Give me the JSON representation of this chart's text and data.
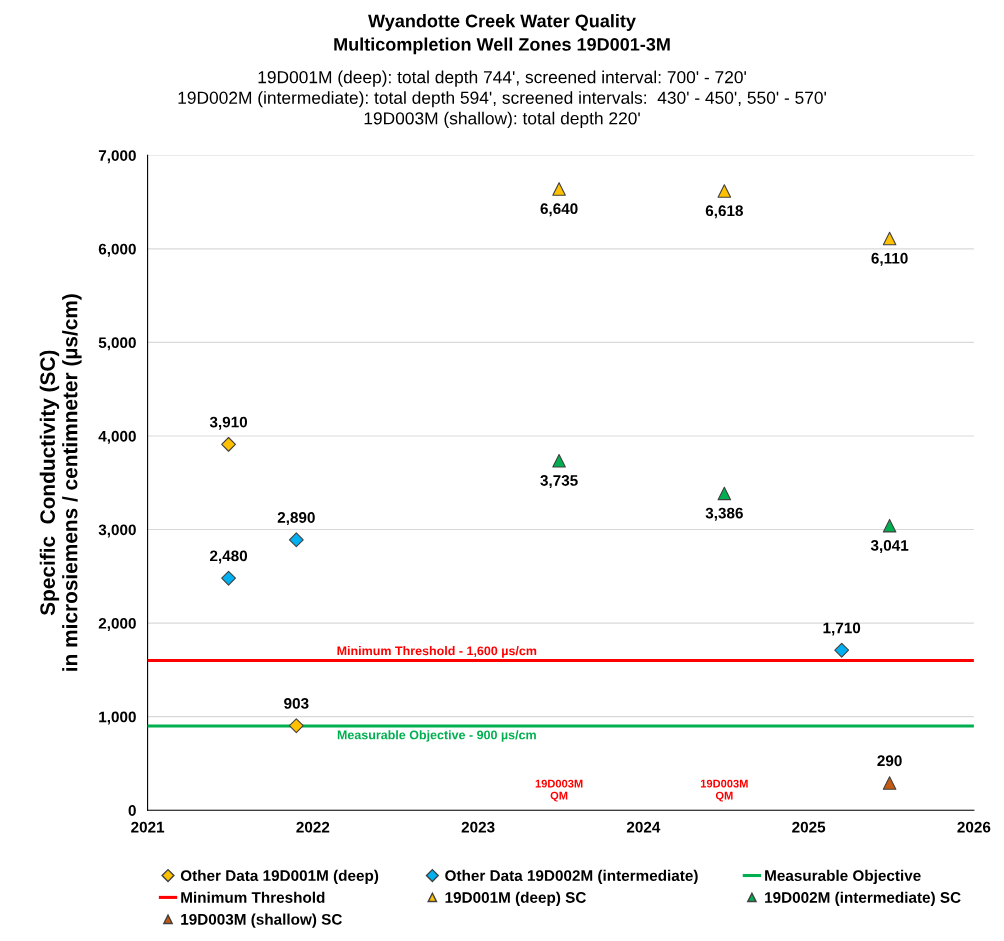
{
  "chart_data": {
    "type": "scatter",
    "title": "Wyandotte Creek Water Quality\nMulticompletion Well Zones 19D001-3M",
    "subtitle": "19D001M (deep): total depth 744', screened interval: 700' - 720'\n19D002M (intermediate): total depth 594', screened intervals:  430' - 450', 550' - 570'\n19D003M (shallow): total depth 220'",
    "ylabel": "Specific  Conductivity (SC)\nin microsiemens / centimneter (µs/cm)",
    "series": [
      {
        "name": "Other Data 19D001M (deep)",
        "marker": "diamond",
        "color": "#ffc000",
        "x": [
          2021.49,
          2021.9
        ],
        "values": [
          3910,
          903
        ],
        "value_labels": [
          "3,910",
          "903"
        ]
      },
      {
        "name": "Other Data 19D002M (intermediate)",
        "marker": "diamond",
        "color": "#00b0f0",
        "x": [
          2021.49,
          2021.9,
          2025.2
        ],
        "values": [
          2480,
          2890,
          1710
        ],
        "value_labels": [
          "2,480",
          "2,890",
          "1,710"
        ]
      },
      {
        "name": "Measurable Objective",
        "type": "line",
        "marker": "none",
        "color": "#00b050",
        "x": [
          2021,
          2026
        ],
        "values": [
          900,
          900
        ]
      },
      {
        "name": "Minimum Threshold",
        "type": "line",
        "marker": "none",
        "color": "#ff0000",
        "x": [
          2021,
          2026
        ],
        "values": [
          1600,
          1600
        ]
      },
      {
        "name": "19D001M (deep) SC",
        "marker": "triangle",
        "color": "#ffc000",
        "x": [
          2023.49,
          2024.49,
          2025.49
        ],
        "values": [
          6640,
          6618,
          6110
        ],
        "value_labels": [
          "6,640",
          "6,618",
          "6,110"
        ]
      },
      {
        "name": "19D002M (intermediate) SC",
        "marker": "triangle",
        "color": "#00b050",
        "x": [
          2023.49,
          2024.49,
          2025.49
        ],
        "values": [
          3735,
          3386,
          3041
        ],
        "value_labels": [
          "3,735",
          "3,386",
          "3,041"
        ]
      },
      {
        "name": "19D003M (shallow) SC",
        "marker": "triangle",
        "color": "#c55a11",
        "x": [
          2025.49
        ],
        "values": [
          290
        ],
        "value_labels": [
          "290"
        ]
      }
    ],
    "annotations": [
      {
        "text": "Minimum Threshold - 1,600 µs/cm",
        "x": 2022.75,
        "y": 1600
      },
      {
        "text": "Measurable Objective - 900 µs/cm",
        "x": 2022.75,
        "y": 900
      },
      "19D003M\nQM",
      "19D003M\nQM"
    ],
    "xlim": [
      2021,
      2026
    ],
    "xticks": [
      2021,
      2022,
      2023,
      2024,
      2025,
      2026
    ],
    "ylim": [
      0,
      7000
    ],
    "yticks": [
      {
        "value": 0,
        "label": "0"
      },
      {
        "value": 1000,
        "label": "1,000"
      },
      {
        "value": 2000,
        "label": "2,000"
      },
      {
        "value": 3000,
        "label": "3,000"
      },
      {
        "value": 4000,
        "label": "4,000"
      },
      {
        "value": 5000,
        "label": "5,000"
      },
      {
        "value": 6000,
        "label": "6,000"
      },
      {
        "value": 7000,
        "label": "7,000"
      }
    ],
    "grid": "y",
    "legend": "bottom"
  }
}
